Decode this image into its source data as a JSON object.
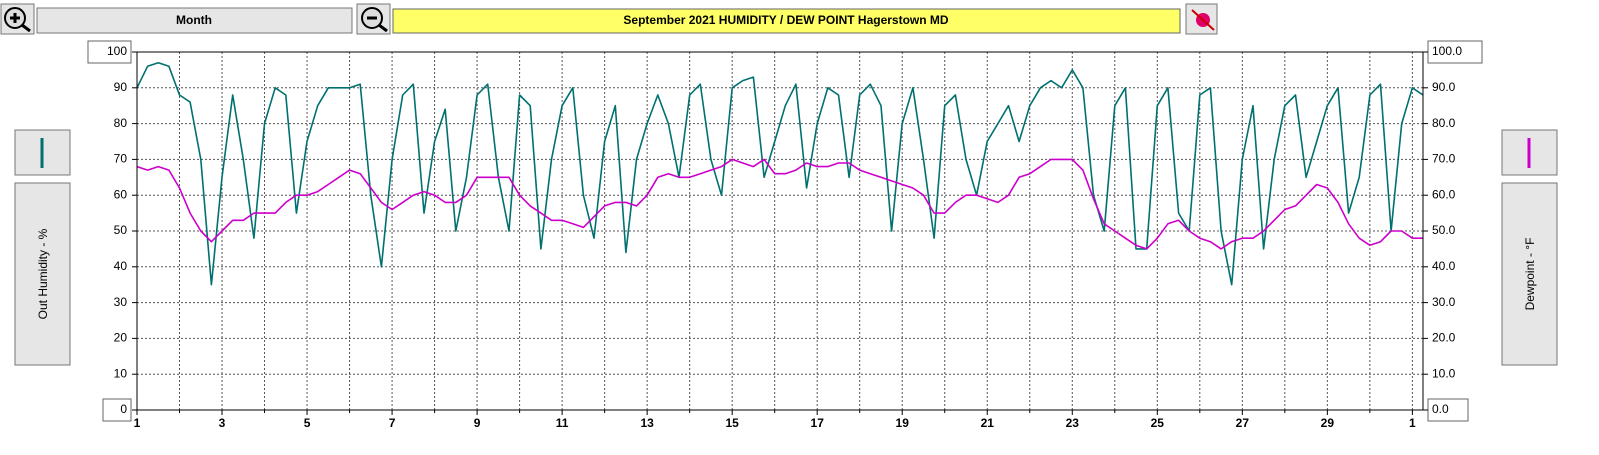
{
  "chart_data": {
    "type": "line",
    "title": "September  2021   HUMIDITY / DEW POINT  Hagerstown MD",
    "period": "Month",
    "ylabel": "Out Humidity - %",
    "y2label": "Dewpoint - °F",
    "xlim": [
      1,
      31.25
    ],
    "xticks": [
      1,
      3,
      5,
      7,
      9,
      11,
      13,
      15,
      17,
      19,
      21,
      23,
      25,
      27,
      29,
      {
        "value": 31,
        "label": "1"
      }
    ],
    "xminorticks": [
      2,
      4,
      6,
      8,
      10,
      12,
      14,
      16,
      18,
      20,
      22,
      24,
      26,
      28,
      30
    ],
    "ylim": [
      0,
      100
    ],
    "yticks": [
      0,
      10,
      20,
      30,
      40,
      50,
      60,
      70,
      80,
      90,
      100
    ],
    "y2lim": [
      0,
      100
    ],
    "y2ticks": [
      {
        "value": 0,
        "label": "0.0"
      },
      {
        "value": 10,
        "label": "10.0"
      },
      {
        "value": 20,
        "label": "20.0"
      },
      {
        "value": 30,
        "label": "30.0"
      },
      {
        "value": 40,
        "label": "40.0"
      },
      {
        "value": 50,
        "label": "50.0"
      },
      {
        "value": 60,
        "label": "60.0"
      },
      {
        "value": 70,
        "label": "70.0"
      },
      {
        "value": 80,
        "label": "80.0"
      },
      {
        "value": 90,
        "label": "90.0"
      },
      {
        "value": 100,
        "label": "100.0"
      }
    ],
    "grid": true,
    "x": [
      1,
      1.25,
      1.5,
      1.75,
      2,
      2.25,
      2.5,
      2.75,
      3,
      3.25,
      3.5,
      3.75,
      4,
      4.25,
      4.5,
      4.75,
      5,
      5.25,
      5.5,
      5.75,
      6,
      6.25,
      6.5,
      6.75,
      7,
      7.25,
      7.5,
      7.75,
      8,
      8.25,
      8.5,
      8.75,
      9,
      9.25,
      9.5,
      9.75,
      10,
      10.25,
      10.5,
      10.75,
      11,
      11.25,
      11.5,
      11.75,
      12,
      12.25,
      12.5,
      12.75,
      13,
      13.25,
      13.5,
      13.75,
      14,
      14.25,
      14.5,
      14.75,
      15,
      15.25,
      15.5,
      15.75,
      16,
      16.25,
      16.5,
      16.75,
      17,
      17.25,
      17.5,
      17.75,
      18,
      18.25,
      18.5,
      18.75,
      19,
      19.25,
      19.5,
      19.75,
      20,
      20.25,
      20.5,
      20.75,
      21,
      21.25,
      21.5,
      21.75,
      22,
      22.25,
      22.5,
      22.75,
      23,
      23.25,
      23.5,
      23.75,
      24,
      24.25,
      24.5,
      24.75,
      25,
      25.25,
      25.5,
      25.75,
      26,
      26.25,
      26.5,
      26.75,
      27,
      27.25,
      27.5,
      27.75,
      28,
      28.25,
      28.5,
      28.75,
      29,
      29.25,
      29.5,
      29.75,
      30,
      30.25,
      30.5,
      30.75,
      31,
      31.25
    ],
    "series": [
      {
        "color": "#007070",
        "axis": "y",
        "values": [
          90,
          96,
          97,
          96,
          88,
          86,
          70,
          35,
          65,
          88,
          70,
          48,
          80,
          90,
          88,
          55,
          75,
          85,
          90,
          90,
          90,
          91,
          60,
          40,
          70,
          88,
          91,
          55,
          75,
          84,
          50,
          65,
          88,
          91,
          65,
          50,
          88,
          85,
          45,
          70,
          85,
          90,
          60,
          48,
          75,
          85,
          44,
          70,
          80,
          88,
          80,
          65,
          88,
          91,
          70,
          60,
          90,
          92,
          93,
          65,
          75,
          85,
          91,
          62,
          80,
          90,
          88,
          65,
          88,
          91,
          85,
          50,
          80,
          90,
          70,
          48,
          85,
          88,
          70,
          60,
          75,
          80,
          85,
          75,
          85,
          90,
          92,
          90,
          95,
          90,
          60,
          50,
          85,
          90,
          45,
          45,
          85,
          90,
          55,
          50,
          88,
          90,
          50,
          35,
          70,
          85,
          45,
          70,
          85,
          88,
          65,
          75,
          85,
          90,
          55,
          65,
          88,
          91,
          50,
          80,
          90,
          88
        ]
      },
      {
        "color": "#cc00cc",
        "axis": "y2",
        "values": [
          68,
          67,
          68,
          67,
          62,
          55,
          50,
          47,
          50,
          53,
          53,
          55,
          55,
          55,
          58,
          60,
          60,
          61,
          63,
          65,
          67,
          66,
          62,
          58,
          56,
          58,
          60,
          61,
          60,
          58,
          58,
          60,
          65,
          65,
          65,
          65,
          60,
          57,
          55,
          53,
          53,
          52,
          51,
          54,
          57,
          58,
          58,
          57,
          60,
          65,
          66,
          65,
          65,
          66,
          67,
          68,
          70,
          69,
          68,
          70,
          66,
          66,
          67,
          69,
          68,
          68,
          69,
          69,
          67,
          66,
          65,
          64,
          63,
          62,
          60,
          55,
          55,
          58,
          60,
          60,
          59,
          58,
          60,
          65,
          66,
          68,
          70,
          70,
          70,
          67,
          59,
          52,
          50,
          48,
          46,
          45,
          48,
          52,
          53,
          50,
          48,
          47,
          45,
          47,
          48,
          48,
          50,
          53,
          56,
          57,
          60,
          63,
          62,
          58,
          52,
          48,
          46,
          47,
          50,
          50,
          48,
          48
        ]
      }
    ]
  }
}
